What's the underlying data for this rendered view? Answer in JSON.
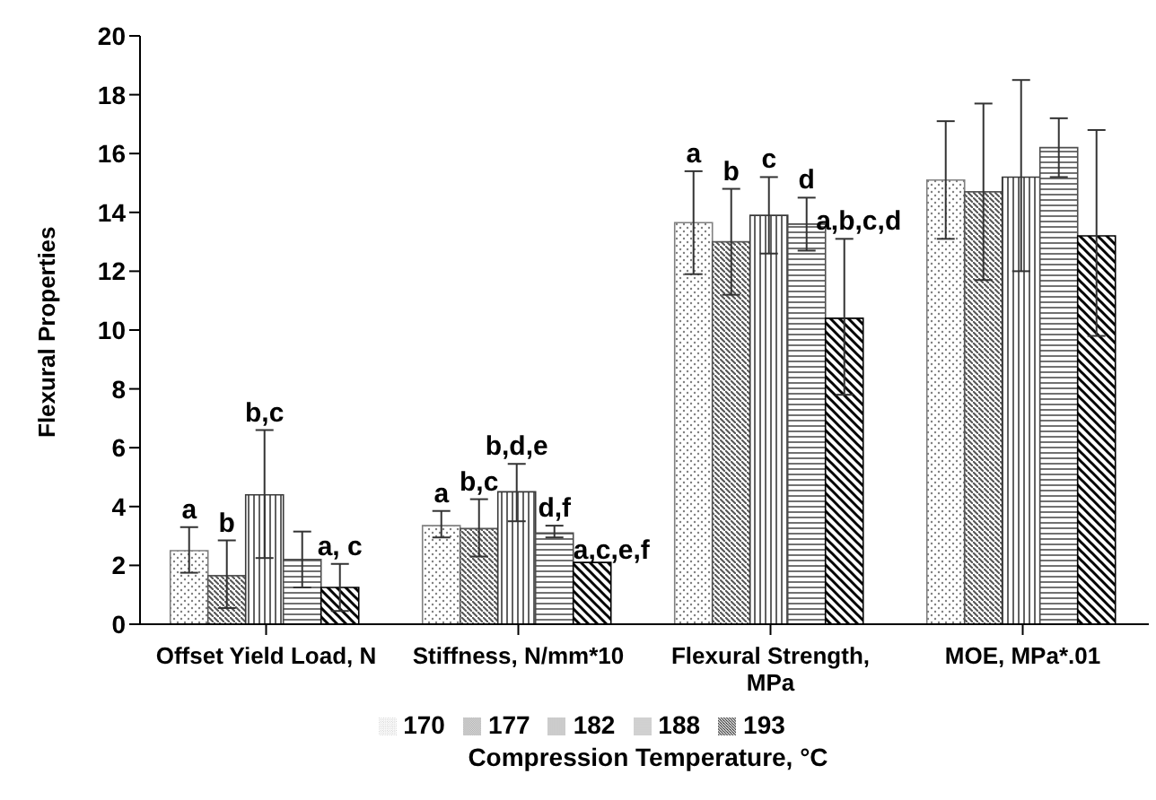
{
  "chart_data": {
    "type": "bar",
    "xlabel": "Compression Temperature, °C",
    "ylabel": "Flexural Properties",
    "categories": [
      "Offset Yield Load, N",
      "Stiffness, N/mm*10",
      "Flexural Strength, MPa",
      "MOE, MPa*.01"
    ],
    "series": [
      {
        "name": "170",
        "color": "#808080",
        "values": [
          2.5,
          3.35,
          13.65,
          15.1
        ],
        "errors": [
          [
            1.75,
            3.3
          ],
          [
            2.95,
            3.85
          ],
          [
            11.9,
            15.4
          ],
          [
            13.1,
            17.1
          ]
        ]
      },
      {
        "name": "177",
        "color": "#555555",
        "values": [
          1.65,
          3.25,
          13.0,
          14.7
        ],
        "errors": [
          [
            0.55,
            2.85
          ],
          [
            2.3,
            4.25
          ],
          [
            11.2,
            14.8
          ],
          [
            11.7,
            17.7
          ]
        ]
      },
      {
        "name": "182",
        "color": "#3a3a3a",
        "values": [
          4.4,
          4.5,
          13.9,
          15.2
        ],
        "errors": [
          [
            2.25,
            6.6
          ],
          [
            3.5,
            5.45
          ],
          [
            12.6,
            15.2
          ],
          [
            12.0,
            18.5
          ]
        ]
      },
      {
        "name": "188",
        "color": "#4d4d4d",
        "values": [
          2.2,
          3.1,
          13.6,
          16.2
        ],
        "errors": [
          [
            1.25,
            3.15
          ],
          [
            2.95,
            3.35
          ],
          [
            12.7,
            14.5
          ],
          [
            15.2,
            17.2
          ]
        ]
      },
      {
        "name": "193",
        "color": "#000000",
        "values": [
          1.25,
          2.1,
          10.4,
          13.2
        ],
        "errors": [
          [
            0.45,
            2.05
          ],
          null,
          [
            7.8,
            13.1
          ],
          [
            9.8,
            16.8
          ]
        ]
      }
    ],
    "annotations": [
      {
        "text": "a",
        "x": "Offset Yield Load, N",
        "y": 3.3
      },
      {
        "text": "b",
        "x": "Offset Yield Load, N",
        "y": 2.85
      },
      {
        "text": "b,c",
        "x": "Offset Yield Load, N",
        "y": 6.6
      },
      {
        "text": "a, c",
        "x": "Offset Yield Load, N",
        "y": 2.05
      },
      {
        "text": "a",
        "x": "Stiffness, N/mm*10",
        "y": 3.85
      },
      {
        "text": "b,c",
        "x": "Stiffness, N/mm*10",
        "y": 4.25
      },
      {
        "text": "b,d,e",
        "x": "Stiffness, N/mm*10",
        "y": 5.45
      },
      {
        "text": "d,f",
        "x": "Stiffness, N/mm*10",
        "y": 3.35
      },
      "a,c,e,f",
      {
        "text": "a",
        "x": "Flexural Strength, MPa",
        "y": 15.4
      },
      {
        "text": "b",
        "x": "Flexural Strength, MPa",
        "y": 14.8
      },
      {
        "text": "c",
        "x": "Flexural Strength, MPa",
        "y": 15.2
      },
      {
        "text": "d",
        "x": "Flexural Strength, MPa",
        "y": 14.5
      },
      {
        "text": "a,b,c,d",
        "x": "Flexural Strength, MPa",
        "y": 13.1
      }
    ],
    "ylim": [
      0,
      20
    ],
    "yticks": [
      0,
      2,
      4,
      6,
      8,
      10,
      12,
      14,
      16,
      18,
      20
    ],
    "grid": false,
    "legend": "bottom"
  }
}
